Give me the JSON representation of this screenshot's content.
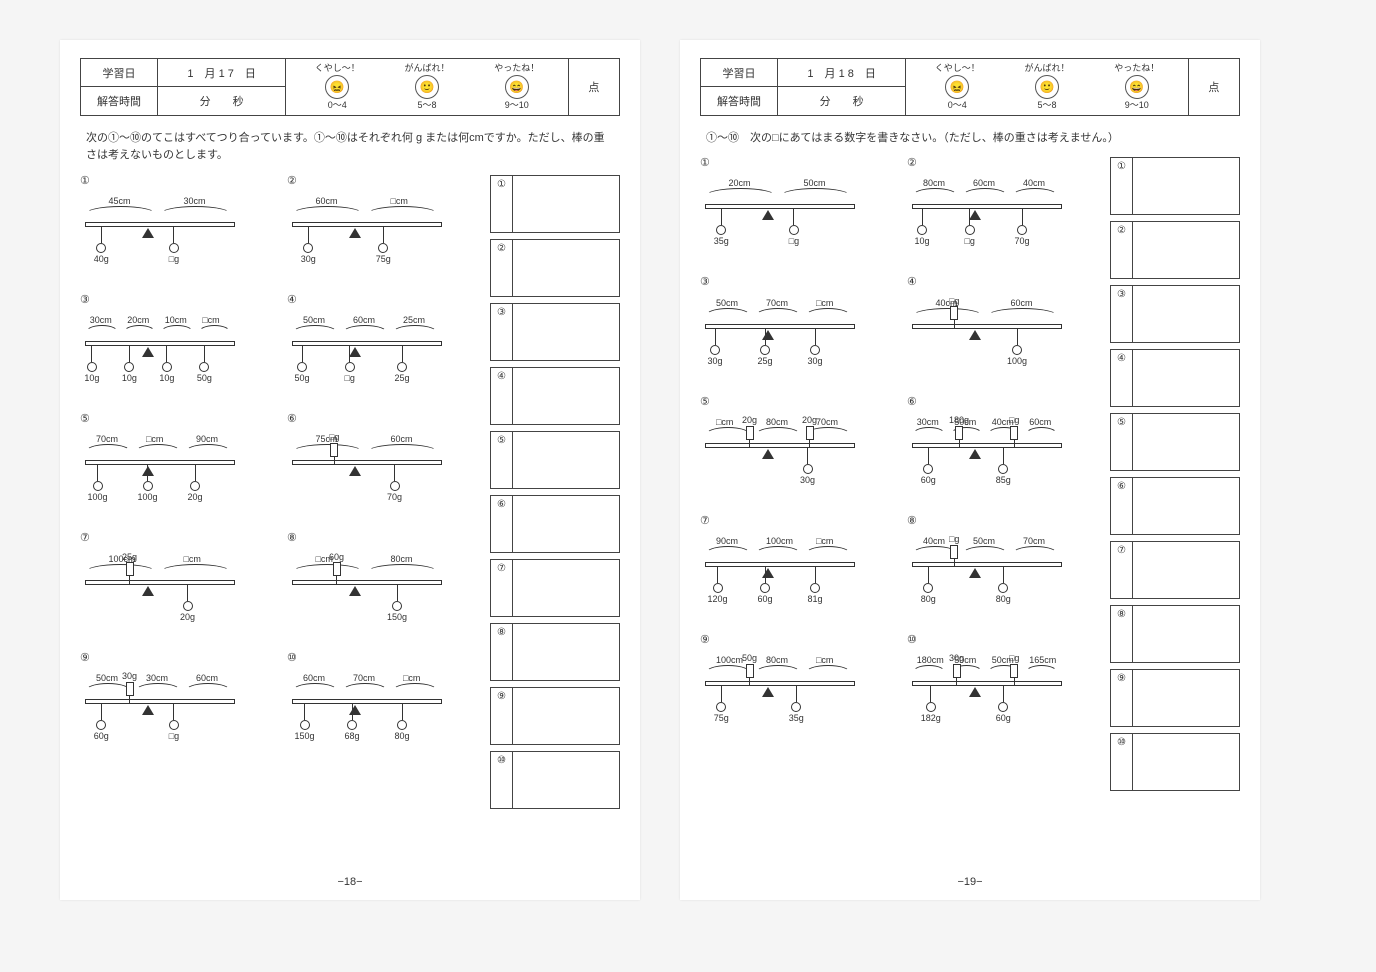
{
  "common": {
    "header": {
      "study_label": "学習日",
      "answer_time_label": "解答時間",
      "minute": "分",
      "second": "秒",
      "points": "点",
      "stamp1_label": "くやし～！",
      "stamp1_range": "0～4",
      "stamp2_label": "がんばれ！",
      "stamp2_range": "5～8",
      "stamp3_label": "やったね！",
      "stamp3_range": "9～10"
    },
    "circled": [
      "①",
      "②",
      "③",
      "④",
      "⑤",
      "⑥",
      "⑦",
      "⑧",
      "⑨",
      "⑩"
    ]
  },
  "left": {
    "date": "1　月 1 7　日",
    "instruction": "次の①～⑩のてこはすべてつり合っています。①～⑩はそれぞれ何 g または何cmですか。ただし、棒の重さは考えないものとします。",
    "page_num": "−18−",
    "problems": [
      {
        "n": "①",
        "dims": [
          "45cm",
          "30cm"
        ],
        "w": [
          "40g",
          "□g"
        ]
      },
      {
        "n": "②",
        "dims": [
          "60cm",
          "□cm"
        ],
        "w": [
          "30g",
          "75g"
        ]
      },
      {
        "n": "③",
        "dims": [
          "30cm",
          "20cm",
          "10cm",
          "□cm"
        ],
        "w": [
          "10g",
          "10g",
          "10g",
          "50g"
        ]
      },
      {
        "n": "④",
        "dims": [
          "50cm",
          "60cm",
          "25cm"
        ],
        "w": [
          "50g",
          "□g",
          "25g"
        ]
      },
      {
        "n": "⑤",
        "dims": [
          "70cm",
          "□cm",
          "90cm"
        ],
        "w": [
          "100g",
          "100g",
          "20g"
        ]
      },
      {
        "n": "⑥",
        "dims": [
          "75cm",
          "60cm"
        ],
        "w": [
          "70g"
        ],
        "s": [
          "□g"
        ]
      },
      {
        "n": "⑦",
        "dims": [
          "100cm",
          "□cm"
        ],
        "w": [
          "20g"
        ],
        "s": [
          "25g"
        ]
      },
      {
        "n": "⑧",
        "dims": [
          "□cm",
          "80cm"
        ],
        "w": [
          "150g"
        ],
        "s": [
          "60g"
        ]
      },
      {
        "n": "⑨",
        "dims": [
          "50cm",
          "30cm",
          "60cm"
        ],
        "w": [
          "60g",
          "□g"
        ],
        "s": [
          "30g"
        ]
      },
      {
        "n": "⑩",
        "dims": [
          "60cm",
          "70cm",
          "□cm"
        ],
        "w": [
          "150g",
          "68g",
          "80g"
        ]
      }
    ]
  },
  "right": {
    "date": "1　月 1 8　日",
    "instruction": "①～⑩　次の□にあてはまる数字を書きなさい。（ただし、棒の重さは考えません。）",
    "page_num": "−19−",
    "problems": [
      {
        "n": "①",
        "dims": [
          "20cm",
          "50cm"
        ],
        "w": [
          "35g",
          "□g"
        ]
      },
      {
        "n": "②",
        "dims": [
          "80cm",
          "60cm",
          "40cm"
        ],
        "w": [
          "10g",
          "□g",
          "70g"
        ]
      },
      {
        "n": "③",
        "dims": [
          "50cm",
          "70cm",
          "□cm"
        ],
        "w": [
          "30g",
          "25g",
          "30g"
        ]
      },
      {
        "n": "④",
        "dims": [
          "40cm",
          "60cm"
        ],
        "w": [
          "100g"
        ],
        "s": [
          "□g"
        ]
      },
      {
        "n": "⑤",
        "dims": [
          "□cm",
          "80cm",
          "70cm"
        ],
        "w": [
          "30g"
        ],
        "s": [
          "20g",
          "20g"
        ]
      },
      {
        "n": "⑥",
        "dims": [
          "30cm",
          "50cm",
          "40cm",
          "60cm"
        ],
        "w": [
          "60g",
          "85g"
        ],
        "s": [
          "180g",
          "□g"
        ]
      },
      {
        "n": "⑦",
        "dims": [
          "90cm",
          "100cm",
          "□cm"
        ],
        "w": [
          "120g",
          "60g",
          "81g"
        ]
      },
      {
        "n": "⑧",
        "dims": [
          "40cm",
          "50cm",
          "70cm"
        ],
        "w": [
          "80g",
          "80g"
        ],
        "s": [
          "□g"
        ]
      },
      {
        "n": "⑨",
        "dims": [
          "100cm",
          "80cm",
          "□cm"
        ],
        "w": [
          "75g",
          "35g"
        ],
        "s": [
          "50g"
        ]
      },
      {
        "n": "⑩",
        "dims": [
          "180cm",
          "50cm",
          "50cm",
          "165cm"
        ],
        "w": [
          "182g",
          "60g"
        ],
        "s": [
          "30g",
          "□g"
        ]
      }
    ]
  }
}
